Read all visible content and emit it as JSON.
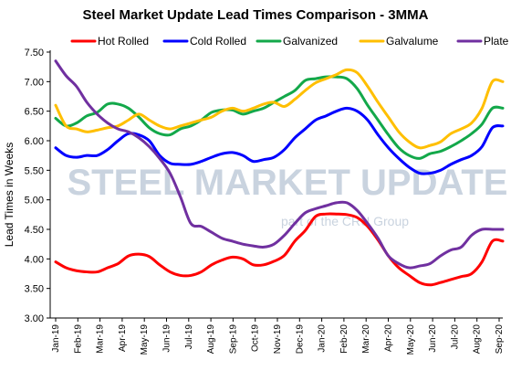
{
  "chart_data": {
    "type": "line",
    "title": "Steel Market Update Lead Times Comparison - 3MMA",
    "ylabel": "Lead Times in Weeks",
    "xlabel": "",
    "ylim": [
      3.0,
      7.5
    ],
    "yticks": [
      "3.00",
      "3.50",
      "4.00",
      "4.50",
      "5.00",
      "5.50",
      "6.00",
      "6.50",
      "7.00",
      "7.50"
    ],
    "ytick_values": [
      3.0,
      3.5,
      4.0,
      4.5,
      5.0,
      5.5,
      6.0,
      6.5,
      7.0,
      7.5
    ],
    "x_count": 44,
    "x_tick_labels": [
      {
        "i": 0,
        "label": "Jan-19"
      },
      {
        "i": 4,
        "label": "Feb-19"
      },
      {
        "i": 8,
        "label": "Mar-19"
      },
      {
        "i": 12,
        "label": "Apr-19"
      },
      {
        "i": 16,
        "label": "May-19"
      },
      {
        "i": 20,
        "label": "Jun-19"
      },
      {
        "i": 24,
        "label": "Jul-19"
      },
      {
        "i": 28,
        "label": "Aug-19"
      },
      {
        "i": 32,
        "label": "Sep-19"
      },
      {
        "i": 36,
        "label": "Oct-19"
      },
      {
        "i": 40,
        "label": "Nov-19"
      },
      {
        "i": 44,
        "label": "Dec-19"
      },
      {
        "i": 48,
        "label": "Jan-20"
      },
      {
        "i": 52,
        "label": "Feb-20"
      },
      {
        "i": 56,
        "label": "Mar-20"
      },
      {
        "i": 60,
        "label": "Apr-20"
      },
      {
        "i": 64,
        "label": "May-20"
      },
      {
        "i": 68,
        "label": "Jun-20"
      },
      {
        "i": 72,
        "label": "Jul-20"
      },
      {
        "i": 76,
        "label": "Aug-20"
      },
      {
        "i": 80,
        "label": "Sep-20"
      }
    ],
    "series": [
      {
        "name": "Hot Rolled",
        "color": "#ff0000",
        "values": [
          3.95,
          3.85,
          3.8,
          3.78,
          3.78,
          3.85,
          3.92,
          4.05,
          4.08,
          4.04,
          3.9,
          3.78,
          3.72,
          3.72,
          3.78,
          3.9,
          3.98,
          4.03,
          4.0,
          3.9,
          3.9,
          3.96,
          4.06,
          4.3,
          4.48,
          4.72,
          4.76,
          4.76,
          4.75,
          4.7,
          4.55,
          4.32,
          4.05,
          3.85,
          3.72,
          3.6,
          3.56,
          3.6,
          3.65,
          3.7,
          3.75,
          3.95,
          4.3,
          4.3
        ]
      },
      {
        "name": "Cold Rolled",
        "color": "#0000ff",
        "values": [
          5.88,
          5.75,
          5.72,
          5.75,
          5.75,
          5.85,
          6.0,
          6.12,
          6.1,
          6.0,
          5.75,
          5.62,
          5.6,
          5.6,
          5.65,
          5.72,
          5.78,
          5.8,
          5.75,
          5.65,
          5.68,
          5.72,
          5.85,
          6.05,
          6.2,
          6.35,
          6.42,
          6.5,
          6.55,
          6.5,
          6.35,
          6.1,
          5.88,
          5.7,
          5.55,
          5.45,
          5.45,
          5.5,
          5.6,
          5.68,
          5.75,
          5.9,
          6.22,
          6.25
        ]
      },
      {
        "name": "Galvanized",
        "color": "#13a84a",
        "values": [
          6.38,
          6.25,
          6.3,
          6.42,
          6.48,
          6.62,
          6.62,
          6.55,
          6.4,
          6.22,
          6.12,
          6.1,
          6.2,
          6.25,
          6.35,
          6.48,
          6.52,
          6.52,
          6.45,
          6.5,
          6.55,
          6.65,
          6.75,
          6.85,
          7.02,
          7.05,
          7.08,
          7.08,
          7.05,
          6.88,
          6.6,
          6.35,
          6.1,
          5.88,
          5.75,
          5.7,
          5.78,
          5.82,
          5.9,
          6.0,
          6.12,
          6.28,
          6.55,
          6.55
        ]
      },
      {
        "name": "Galvalume",
        "color": "#ffbf00",
        "values": [
          6.6,
          6.25,
          6.2,
          6.15,
          6.18,
          6.22,
          6.25,
          6.35,
          6.45,
          6.35,
          6.25,
          6.2,
          6.25,
          6.3,
          6.35,
          6.4,
          6.5,
          6.55,
          6.5,
          6.55,
          6.62,
          6.65,
          6.58,
          6.7,
          6.85,
          6.98,
          7.05,
          7.12,
          7.2,
          7.15,
          6.92,
          6.65,
          6.4,
          6.15,
          5.98,
          5.88,
          5.92,
          5.98,
          6.12,
          6.2,
          6.3,
          6.55,
          7.0,
          7.0
        ]
      },
      {
        "name": "Plate",
        "color": "#7030a0",
        "values": [
          7.35,
          7.1,
          6.92,
          6.65,
          6.45,
          6.3,
          6.2,
          6.15,
          6.05,
          5.9,
          5.7,
          5.45,
          5.05,
          4.6,
          4.55,
          4.45,
          4.35,
          4.3,
          4.25,
          4.22,
          4.2,
          4.25,
          4.4,
          4.6,
          4.78,
          4.85,
          4.9,
          4.95,
          4.95,
          4.82,
          4.6,
          4.35,
          4.05,
          3.92,
          3.85,
          3.88,
          3.92,
          4.05,
          4.15,
          4.2,
          4.4,
          4.5,
          4.5,
          4.5
        ]
      }
    ]
  },
  "watermark": {
    "line1": "STEEL MARKET UPDATE",
    "line2": "part of the CRU Group"
  }
}
